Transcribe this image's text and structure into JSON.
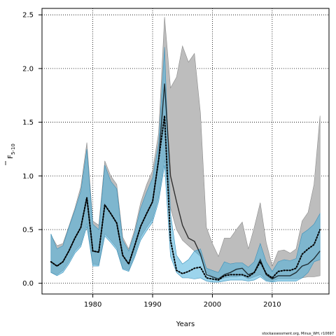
{
  "chart_data": {
    "type": "line",
    "xlabel": "Years",
    "ylabel": "F",
    "ylabel_sub": "5-10",
    "xlim": [
      1971.5,
      2019.5
    ],
    "ylim": [
      -0.1,
      2.56
    ],
    "xticks": [
      1980,
      1990,
      2000,
      2010
    ],
    "yticks": [
      0.0,
      0.5,
      1.0,
      1.5,
      2.0,
      2.5
    ],
    "grid": true,
    "footer": "stockassessment.org, Minus_WH, r10697",
    "series": [
      {
        "name": "",
        "role": "grey-band",
        "x": [
          1973,
          1974,
          1975,
          1976,
          1977,
          1978,
          1979,
          1980,
          1981,
          1982,
          1983,
          1984,
          1985,
          1986,
          1987,
          1988,
          1989,
          1990,
          1991,
          1992,
          1993,
          1994,
          1995,
          1996,
          1997,
          1998,
          1999,
          2000,
          2001,
          2002,
          2003,
          2004,
          2005,
          2006,
          2007,
          2008,
          2009,
          2010,
          2011,
          2012,
          2013,
          2014,
          2015,
          2016,
          2017,
          2018
        ],
        "upper": [
          0.45,
          0.35,
          0.37,
          0.53,
          0.7,
          0.9,
          1.31,
          0.58,
          0.54,
          1.14,
          1.0,
          0.92,
          0.43,
          0.32,
          0.5,
          0.75,
          0.92,
          1.05,
          1.4,
          2.48,
          1.82,
          1.92,
          2.21,
          2.06,
          2.14,
          1.58,
          0.52,
          0.37,
          0.25,
          0.42,
          0.42,
          0.5,
          0.57,
          0.32,
          0.52,
          0.75,
          0.38,
          0.16,
          0.3,
          0.31,
          0.28,
          0.32,
          0.58,
          0.66,
          0.92,
          1.56
        ],
        "lower": [
          0.1,
          0.08,
          0.12,
          0.2,
          0.3,
          0.36,
          0.56,
          0.18,
          0.17,
          0.46,
          0.4,
          0.33,
          0.14,
          0.12,
          0.26,
          0.43,
          0.52,
          0.6,
          0.8,
          1.15,
          0.7,
          0.5,
          0.4,
          0.35,
          0.3,
          0.25,
          0.1,
          0.06,
          0.03,
          0.05,
          0.06,
          0.06,
          0.07,
          0.04,
          0.06,
          0.08,
          0.03,
          0.02,
          0.04,
          0.04,
          0.04,
          0.04,
          0.05,
          0.06,
          0.06,
          0.07
        ]
      },
      {
        "name": "",
        "role": "blue-band",
        "x": [
          1973,
          1974,
          1975,
          1976,
          1977,
          1978,
          1979,
          1980,
          1981,
          1982,
          1983,
          1984,
          1985,
          1986,
          1987,
          1988,
          1989,
          1990,
          1991,
          1992,
          1993,
          1994,
          1995,
          1996,
          1997,
          1998,
          1999,
          2000,
          2001,
          2002,
          2003,
          2004,
          2005,
          2006,
          2007,
          2008,
          2009,
          2010,
          2011,
          2012,
          2013,
          2014,
          2015,
          2016,
          2017,
          2018
        ],
        "upper": [
          0.46,
          0.32,
          0.35,
          0.52,
          0.68,
          0.86,
          1.25,
          0.55,
          0.5,
          1.1,
          0.95,
          0.88,
          0.4,
          0.3,
          0.47,
          0.7,
          0.85,
          0.98,
          1.3,
          2.2,
          0.65,
          0.26,
          0.18,
          0.22,
          0.3,
          0.32,
          0.14,
          0.12,
          0.1,
          0.2,
          0.18,
          0.19,
          0.19,
          0.15,
          0.2,
          0.37,
          0.2,
          0.11,
          0.2,
          0.22,
          0.21,
          0.23,
          0.46,
          0.5,
          0.55,
          0.65
        ],
        "lower": [
          0.1,
          0.07,
          0.1,
          0.18,
          0.28,
          0.34,
          0.53,
          0.16,
          0.16,
          0.44,
          0.38,
          0.31,
          0.13,
          0.11,
          0.24,
          0.4,
          0.49,
          0.57,
          0.76,
          1.1,
          0.25,
          0.1,
          0.05,
          0.05,
          0.04,
          0.05,
          0.02,
          0.01,
          0.01,
          0.02,
          0.03,
          0.03,
          0.03,
          0.02,
          0.03,
          0.06,
          0.02,
          0.01,
          0.02,
          0.02,
          0.02,
          0.02,
          0.05,
          0.1,
          0.2,
          0.22
        ]
      },
      {
        "name": "",
        "role": "black-solid-line",
        "x": [
          1973,
          1974,
          1975,
          1976,
          1977,
          1978,
          1979,
          1980,
          1981,
          1982,
          1983,
          1984,
          1985,
          1986,
          1987,
          1988,
          1989,
          1990,
          1991,
          1992,
          1993,
          1994,
          1995,
          1996,
          1997,
          1998,
          1999,
          2000,
          2001,
          2002,
          2003,
          2004,
          2005,
          2006,
          2007,
          2008,
          2009,
          2010,
          2011,
          2012,
          2013,
          2014,
          2015,
          2016,
          2017,
          2018
        ],
        "values": [
          0.2,
          0.16,
          0.2,
          0.3,
          0.42,
          0.52,
          0.8,
          0.3,
          0.29,
          0.73,
          0.65,
          0.56,
          0.26,
          0.18,
          0.35,
          0.53,
          0.65,
          0.76,
          1.15,
          1.86,
          1.0,
          0.76,
          0.54,
          0.42,
          0.39,
          0.27,
          0.08,
          0.06,
          0.04,
          0.08,
          0.1,
          0.13,
          0.14,
          0.08,
          0.1,
          0.22,
          0.08,
          0.04,
          0.07,
          0.07,
          0.07,
          0.1,
          0.16,
          0.18,
          0.23,
          0.3
        ]
      },
      {
        "name": "",
        "role": "black-dotted-line",
        "x": [
          1973,
          1974,
          1975,
          1976,
          1977,
          1978,
          1979,
          1980,
          1981,
          1982,
          1983,
          1984,
          1985,
          1986,
          1987,
          1988,
          1989,
          1990,
          1991,
          1992,
          1993,
          1994,
          1995,
          1996,
          1997,
          1998,
          1999,
          2000,
          2001,
          2002,
          2003,
          2004,
          2005,
          2006,
          2007,
          2008,
          2009,
          2010,
          2011,
          2012,
          2013,
          2014,
          2015,
          2016,
          2017,
          2018
        ],
        "values": [
          0.2,
          0.16,
          0.2,
          0.3,
          0.42,
          0.52,
          0.8,
          0.3,
          0.29,
          0.73,
          0.65,
          0.56,
          0.26,
          0.18,
          0.35,
          0.53,
          0.65,
          0.76,
          1.15,
          1.56,
          0.4,
          0.12,
          0.09,
          0.11,
          0.14,
          0.15,
          0.05,
          0.04,
          0.03,
          0.07,
          0.08,
          0.08,
          0.08,
          0.06,
          0.1,
          0.2,
          0.09,
          0.05,
          0.11,
          0.12,
          0.12,
          0.14,
          0.27,
          0.32,
          0.36,
          0.5
        ]
      }
    ]
  }
}
